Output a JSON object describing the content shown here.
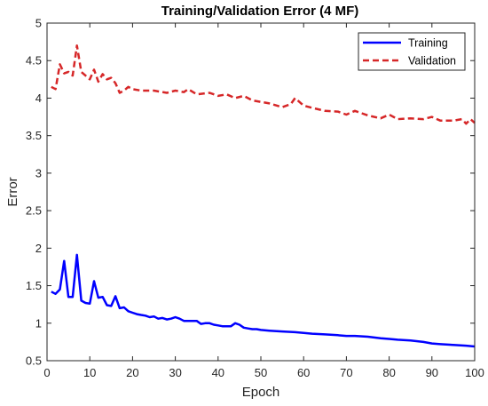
{
  "chart_data": {
    "type": "line",
    "title": "Training/Validation Error (4 MF)",
    "xlabel": "Epoch",
    "ylabel": "Error",
    "xlim": [
      0,
      100
    ],
    "ylim": [
      0.5,
      5
    ],
    "xticks": [
      0,
      10,
      20,
      30,
      40,
      50,
      60,
      70,
      80,
      90,
      100
    ],
    "yticks": [
      0.5,
      1,
      1.5,
      2,
      2.5,
      3,
      3.5,
      4,
      4.5,
      5
    ],
    "ytick_labels": [
      "0.5",
      "1",
      "1.5",
      "2",
      "2.5",
      "3",
      "3.5",
      "4",
      "4.5",
      "5"
    ],
    "grid": false,
    "legend_position": "top-right",
    "series": [
      {
        "name": "Training",
        "color": "#0000ff",
        "style": "solid",
        "x": [
          1,
          2,
          3,
          4,
          5,
          6,
          7,
          8,
          9,
          10,
          11,
          12,
          13,
          14,
          15,
          16,
          17,
          18,
          19,
          20,
          21,
          22,
          23,
          24,
          25,
          26,
          27,
          28,
          29,
          30,
          31,
          32,
          33,
          34,
          35,
          36,
          37,
          38,
          39,
          40,
          41,
          42,
          43,
          44,
          45,
          46,
          47,
          48,
          49,
          50,
          52,
          55,
          58,
          60,
          62,
          65,
          68,
          70,
          72,
          75,
          78,
          80,
          82,
          85,
          88,
          90,
          92,
          95,
          98,
          100
        ],
        "y": [
          1.42,
          1.39,
          1.45,
          1.83,
          1.35,
          1.35,
          1.91,
          1.3,
          1.27,
          1.26,
          1.56,
          1.34,
          1.35,
          1.24,
          1.23,
          1.36,
          1.2,
          1.21,
          1.16,
          1.14,
          1.12,
          1.11,
          1.1,
          1.08,
          1.09,
          1.06,
          1.07,
          1.05,
          1.06,
          1.08,
          1.06,
          1.03,
          1.03,
          1.03,
          1.03,
          0.99,
          1.0,
          1.0,
          0.98,
          0.97,
          0.96,
          0.96,
          0.96,
          1.0,
          0.98,
          0.94,
          0.93,
          0.92,
          0.92,
          0.91,
          0.9,
          0.89,
          0.88,
          0.87,
          0.86,
          0.85,
          0.84,
          0.83,
          0.83,
          0.82,
          0.8,
          0.79,
          0.78,
          0.77,
          0.75,
          0.73,
          0.72,
          0.71,
          0.7,
          0.69
        ]
      },
      {
        "name": "Validation",
        "color": "#d62728",
        "style": "dashed",
        "x": [
          1,
          2,
          3,
          4,
          5,
          6,
          7,
          8,
          9,
          10,
          11,
          12,
          13,
          14,
          15,
          16,
          17,
          18,
          19,
          20,
          22,
          25,
          28,
          30,
          32,
          33,
          35,
          38,
          40,
          42,
          44,
          46,
          48,
          50,
          52,
          55,
          57,
          58,
          60,
          62,
          65,
          68,
          70,
          72,
          75,
          78,
          80,
          82,
          85,
          88,
          90,
          92,
          95,
          97,
          98,
          99,
          100
        ],
        "y": [
          4.15,
          4.12,
          4.45,
          4.33,
          4.35,
          4.3,
          4.7,
          4.35,
          4.3,
          4.25,
          4.38,
          4.22,
          4.32,
          4.25,
          4.27,
          4.2,
          4.07,
          4.1,
          4.15,
          4.12,
          4.1,
          4.1,
          4.07,
          4.1,
          4.08,
          4.12,
          4.05,
          4.07,
          4.03,
          4.05,
          4.0,
          4.03,
          3.97,
          3.95,
          3.93,
          3.88,
          3.92,
          4.0,
          3.9,
          3.87,
          3.83,
          3.82,
          3.78,
          3.83,
          3.77,
          3.73,
          3.78,
          3.72,
          3.73,
          3.72,
          3.75,
          3.7,
          3.7,
          3.72,
          3.66,
          3.72,
          3.67
        ]
      }
    ]
  }
}
